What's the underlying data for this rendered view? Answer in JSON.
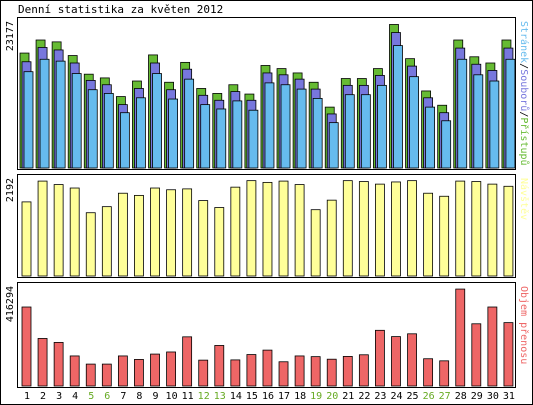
{
  "title": "Denní statistika za květen 2012",
  "colors": {
    "background": "#ffffff",
    "frame": "#000000",
    "hits": "#66bb33",
    "files": "#7777dd",
    "pages": "#66bbee",
    "visits": "#ffff99",
    "kbytes": "#ee6666",
    "weekend_label": "#66aa22",
    "weekday_label": "#000000"
  },
  "chart_data": [
    {
      "type": "bar",
      "name": "hits-files-pages",
      "ymax_label": "23177",
      "ymax": 23177,
      "legend": [
        {
          "label": "Stránek",
          "color": "#66bbee"
        },
        {
          "label": "/",
          "color": "#000000"
        },
        {
          "label": "Souborů",
          "color": "#7777dd"
        },
        {
          "label": "/",
          "color": "#000000"
        },
        {
          "label": "Přístupů",
          "color": "#66bb33"
        }
      ],
      "categories": [
        "1",
        "2",
        "3",
        "4",
        "5",
        "6",
        "7",
        "8",
        "9",
        "10",
        "11",
        "12",
        "13",
        "14",
        "15",
        "16",
        "17",
        "18",
        "19",
        "20",
        "21",
        "22",
        "23",
        "24",
        "25",
        "26",
        "27",
        "28",
        "29",
        "30",
        "31"
      ],
      "weekend_days": [
        "5",
        "6",
        "12",
        "13",
        "19",
        "20",
        "26",
        "27"
      ],
      "series": [
        {
          "name": "Přístupů",
          "values": [
            18500,
            20600,
            20300,
            18100,
            15100,
            14500,
            11500,
            14000,
            18200,
            13800,
            17000,
            12800,
            12000,
            13400,
            11900,
            16500,
            16000,
            15300,
            13800,
            9800,
            14400,
            14400,
            16000,
            23100,
            17600,
            12400,
            10100,
            20600,
            17900,
            16900,
            20600
          ]
        },
        {
          "name": "Souborů",
          "values": [
            17100,
            19400,
            19000,
            16900,
            14100,
            13400,
            10200,
            12800,
            16900,
            12600,
            15900,
            11700,
            10900,
            12300,
            10900,
            15300,
            15000,
            14300,
            12700,
            8700,
            13300,
            13300,
            14900,
            21800,
            16400,
            11300,
            8900,
            19300,
            16700,
            15700,
            19300
          ]
        },
        {
          "name": "Stránek",
          "values": [
            15500,
            17500,
            17200,
            15200,
            12600,
            12000,
            8900,
            11300,
            15200,
            11100,
            14300,
            10200,
            9500,
            10800,
            9300,
            13700,
            13400,
            12700,
            11200,
            7300,
            11800,
            11800,
            13300,
            19700,
            14700,
            9800,
            7600,
            17500,
            15000,
            14000,
            17500
          ]
        }
      ]
    },
    {
      "type": "bar",
      "name": "visits",
      "ymax_label": "2192",
      "ymax": 2192,
      "legend": [
        {
          "label": "Návštěv",
          "color": "#ffff99"
        }
      ],
      "series": [
        {
          "name": "Návštěv",
          "values": [
            1710,
            2190,
            2110,
            2030,
            1460,
            1600,
            1910,
            1860,
            2030,
            1990,
            2010,
            1740,
            1580,
            2050,
            2200,
            2160,
            2190,
            2110,
            1530,
            1750,
            2200,
            2180,
            2120,
            2170,
            2200,
            1910,
            1840,
            2190,
            2180,
            2120,
            2070
          ]
        }
      ]
    },
    {
      "type": "bar",
      "name": "kbytes",
      "ymax_label": "416294",
      "ymax": 416294,
      "legend": [
        {
          "label": "Objem přenosu",
          "color": "#ee6666"
        }
      ],
      "series": [
        {
          "name": "Objem přenosu",
          "values": [
            339000,
            204000,
            187000,
            129000,
            94000,
            94000,
            129000,
            114000,
            137000,
            146000,
            211000,
            111000,
            174000,
            112000,
            135000,
            154000,
            104000,
            129000,
            126000,
            115000,
            127000,
            134000,
            239000,
            212000,
            224000,
            117000,
            108000,
            416000,
            267000,
            339000,
            272000
          ]
        }
      ]
    }
  ]
}
